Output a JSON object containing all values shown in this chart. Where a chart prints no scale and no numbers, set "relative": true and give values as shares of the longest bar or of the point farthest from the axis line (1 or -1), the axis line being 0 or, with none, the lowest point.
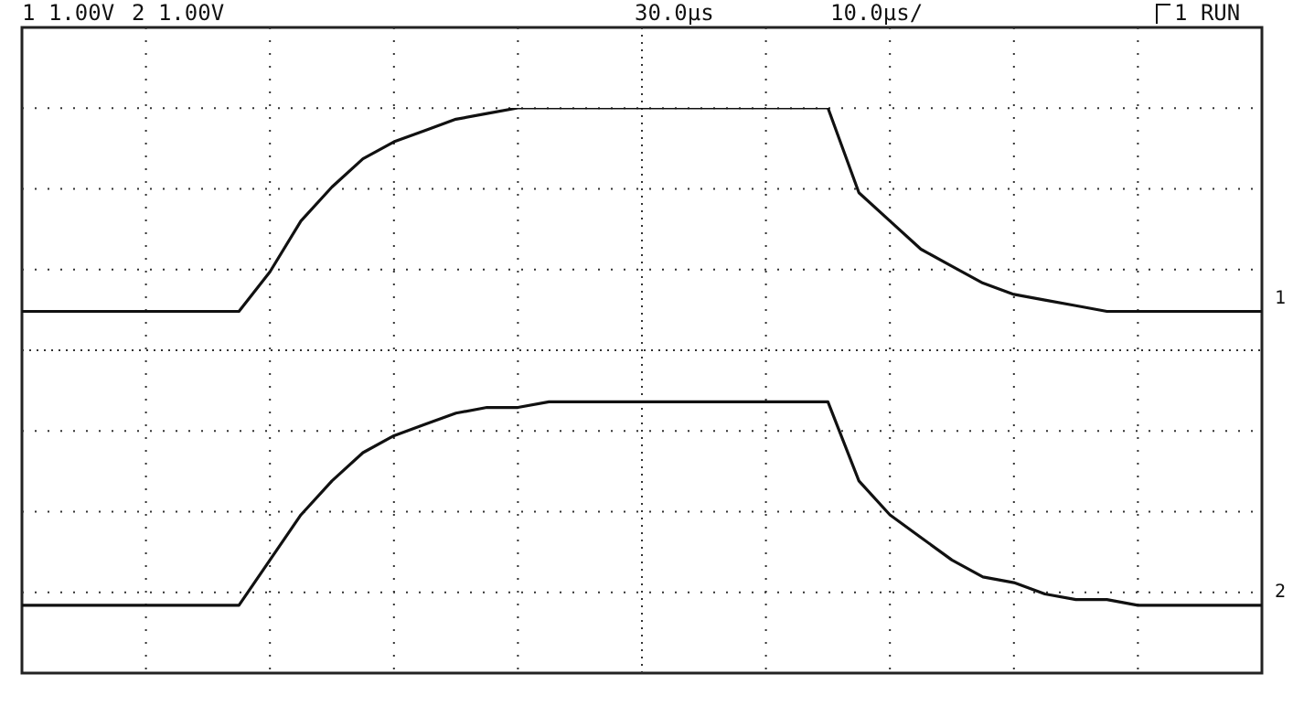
{
  "chart_data": {
    "type": "line",
    "relative": true,
    "legend": false,
    "marker": "none",
    "grid": true,
    "annotations": [
      "1 1.00V",
      "2 1.00V",
      "30.0µs",
      "10.0µs/",
      "1 RUN"
    ],
    "categories": [
      null,
      null,
      null,
      null,
      null,
      null,
      null,
      null,
      null,
      null,
      null,
      null,
      null,
      null,
      null,
      null,
      null,
      null,
      null,
      null,
      null,
      null,
      null,
      null,
      null,
      null,
      null,
      null,
      null,
      null,
      null,
      null,
      null,
      null,
      null,
      null,
      null,
      null,
      null,
      null,
      null
    ],
    "series": [
      {
        "name": "1",
        "color": "#111111",
        "values": [
          0.64,
          0.64,
          0.64,
          0.64,
          0.64,
          0.64,
          0.64,
          0.64,
          0.71,
          0.8,
          0.86,
          0.91,
          0.94,
          0.96,
          0.98,
          0.99,
          1,
          1,
          1,
          1,
          1,
          1,
          1,
          1,
          1,
          1,
          1,
          0.85,
          0.8,
          0.75,
          0.72,
          0.69,
          0.67,
          0.66,
          0.65,
          0.64,
          0.64,
          0.64,
          0.64,
          0.64,
          0.64
        ]
      },
      {
        "name": "2",
        "color": "#111111",
        "values": [
          0.12,
          0.12,
          0.12,
          0.12,
          0.12,
          0.12,
          0.12,
          0.12,
          0.2,
          0.28,
          0.34,
          0.39,
          0.42,
          0.44,
          0.46,
          0.47,
          0.47,
          0.48,
          0.48,
          0.48,
          0.48,
          0.48,
          0.48,
          0.48,
          0.48,
          0.48,
          0.48,
          0.34,
          0.28,
          0.24,
          0.2,
          0.17,
          0.16,
          0.14,
          0.13,
          0.13,
          0.12,
          0.12,
          0.12,
          0.12,
          0.12
        ]
      }
    ]
  }
}
